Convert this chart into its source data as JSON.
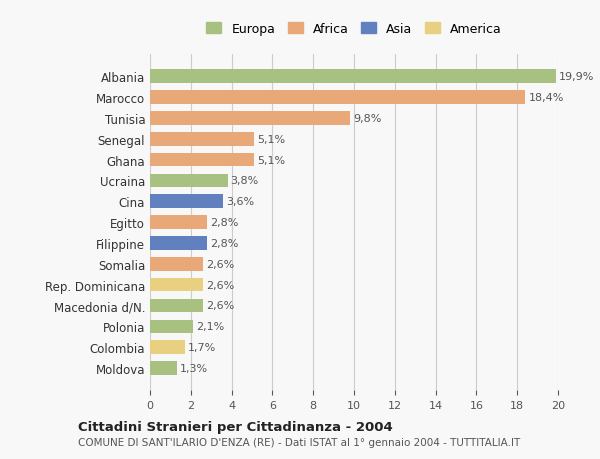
{
  "categories": [
    "Albania",
    "Marocco",
    "Tunisia",
    "Senegal",
    "Ghana",
    "Ucraina",
    "Cina",
    "Egitto",
    "Filippine",
    "Somalia",
    "Rep. Dominicana",
    "Macedonia d/N.",
    "Polonia",
    "Colombia",
    "Moldova"
  ],
  "values": [
    19.9,
    18.4,
    9.8,
    5.1,
    5.1,
    3.8,
    3.6,
    2.8,
    2.8,
    2.6,
    2.6,
    2.6,
    2.1,
    1.7,
    1.3
  ],
  "labels": [
    "19,9%",
    "18,4%",
    "9,8%",
    "5,1%",
    "5,1%",
    "3,8%",
    "3,6%",
    "2,8%",
    "2,8%",
    "2,6%",
    "2,6%",
    "2,6%",
    "2,1%",
    "1,7%",
    "1,3%"
  ],
  "continent": [
    "Europa",
    "Africa",
    "Africa",
    "Africa",
    "Africa",
    "Europa",
    "Asia",
    "Africa",
    "Asia",
    "Africa",
    "America",
    "Europa",
    "Europa",
    "America",
    "Europa"
  ],
  "colors": {
    "Europa": "#a8c080",
    "Africa": "#e8a878",
    "Asia": "#6080c0",
    "America": "#e8d080"
  },
  "legend_order": [
    "Europa",
    "Africa",
    "Asia",
    "America"
  ],
  "xlim": [
    0,
    20
  ],
  "xticks": [
    0,
    2,
    4,
    6,
    8,
    10,
    12,
    14,
    16,
    18,
    20
  ],
  "title": "Cittadini Stranieri per Cittadinanza - 2004",
  "subtitle": "COMUNE DI SANT'ILARIO D'ENZA (RE) - Dati ISTAT al 1° gennaio 2004 - TUTTITALIA.IT",
  "bg_color": "#f8f8f8",
  "grid_color": "#cccccc",
  "bar_height": 0.65
}
